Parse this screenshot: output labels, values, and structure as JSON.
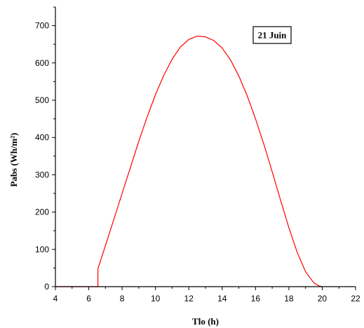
{
  "chart_data": {
    "type": "line",
    "title": "",
    "xlabel": "Tlo (h)",
    "ylabel": "Pabs (Wh/m²)",
    "xlim": [
      4,
      22
    ],
    "ylim": [
      0,
      750
    ],
    "x_ticks": [
      4,
      6,
      8,
      10,
      12,
      14,
      16,
      18,
      20,
      22
    ],
    "y_ticks": [
      0,
      100,
      200,
      300,
      400,
      500,
      600,
      700
    ],
    "grid": false,
    "legend_position": "top-right",
    "annotation": "21 Juin",
    "series": [
      {
        "color": "#ff0000",
        "x": [
          4.0,
          6.55,
          6.55,
          6.6,
          7.0,
          7.5,
          8.0,
          8.5,
          9.0,
          9.5,
          10.0,
          10.5,
          11.0,
          11.5,
          12.0,
          12.5,
          13.0,
          13.5,
          14.0,
          14.5,
          15.0,
          15.5,
          16.0,
          16.5,
          17.0,
          17.5,
          18.0,
          18.5,
          19.0,
          19.5,
          19.8,
          20.0
        ],
        "y": [
          0,
          0,
          48,
          55,
          110,
          180,
          250,
          320,
          390,
          455,
          515,
          567,
          610,
          643,
          663,
          672,
          670,
          660,
          640,
          608,
          565,
          512,
          450,
          382,
          308,
          232,
          158,
          92,
          40,
          10,
          2,
          0
        ]
      }
    ]
  }
}
